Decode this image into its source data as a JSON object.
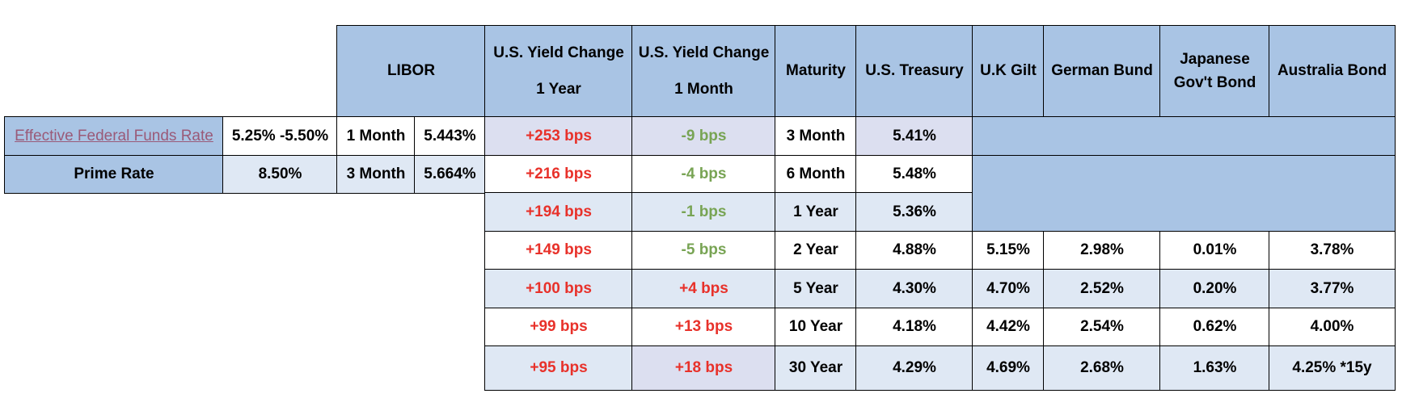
{
  "headers": {
    "libor": "LIBOR",
    "yield_1y": [
      "U.S. Yield Change",
      "1 Year"
    ],
    "yield_1m": [
      "U.S. Yield Change",
      "1 Month"
    ],
    "maturity": "Maturity",
    "us_treasury": "U.S. Treasury",
    "uk_gilt": "U.K Gilt",
    "german_bund": "German Bund",
    "japanese": [
      "Japanese",
      "Gov't Bond"
    ],
    "australia": "Australia Bond"
  },
  "left": {
    "effr_label": "Effective Federal Funds Rate",
    "effr_value": "5.25% -5.50%",
    "prime_label": "Prime Rate",
    "prime_value": "8.50%"
  },
  "libor_rows": [
    {
      "term": "1 Month",
      "rate": "5.443%"
    },
    {
      "term": "3 Month",
      "rate": "5.664%"
    }
  ],
  "rows": [
    {
      "y1": "+253 bps",
      "m1": "-9 bps",
      "maturity": "3 Month",
      "ust": "5.41%"
    },
    {
      "y1": "+216 bps",
      "m1": "-4 bps",
      "maturity": "6 Month",
      "ust": "5.48%"
    },
    {
      "y1": "+194 bps",
      "m1": "-1 bps",
      "maturity": "1 Year",
      "ust": "5.36%"
    },
    {
      "y1": "+149 bps",
      "m1": "-5 bps",
      "maturity": "2 Year",
      "ust": "4.88%",
      "gilt": "5.15%",
      "bund": "2.98%",
      "jgb": "0.01%",
      "aus": "3.78%"
    },
    {
      "y1": "+100 bps",
      "m1": "+4 bps",
      "maturity": "5 Year",
      "ust": "4.30%",
      "gilt": "4.70%",
      "bund": "2.52%",
      "jgb": "0.20%",
      "aus": "3.77%"
    },
    {
      "y1": "+99 bps",
      "m1": "+13 bps",
      "maturity": "10 Year",
      "ust": "4.18%",
      "gilt": "4.42%",
      "bund": "2.54%",
      "jgb": "0.62%",
      "aus": "4.00%"
    },
    {
      "y1": "+95 bps",
      "m1": "+18 bps",
      "maturity": "30 Year",
      "ust": "4.29%",
      "gilt": "4.69%",
      "bund": "2.68%",
      "jgb": "1.63%",
      "aus": "4.25% *15y"
    }
  ],
  "colors": {
    "header_blue": "#a9c4e4",
    "light_blue": "#dfe8f4",
    "lavender": "#dcdff0",
    "positive_red": "#e8312a",
    "negative_green": "#78a454",
    "link": "#9a5a78"
  }
}
